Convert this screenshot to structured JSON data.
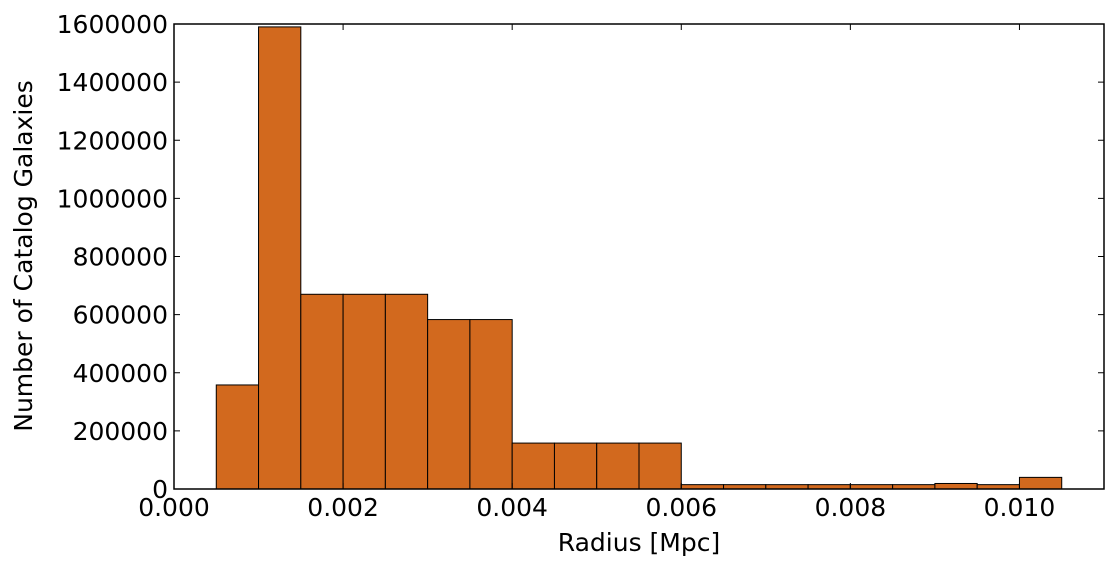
{
  "chart_data": {
    "type": "bar",
    "title": "",
    "xlabel": "Radius [Mpc]",
    "ylabel": "Number of Catalog Galaxies",
    "xlim": [
      0.0,
      0.011
    ],
    "ylim": [
      0,
      1600000
    ],
    "grid": false,
    "bar_color": "#d2691e",
    "edge_color": "#000000",
    "x_ticks": [
      {
        "value": 0.0,
        "label": "0.000"
      },
      {
        "value": 0.002,
        "label": "0.002"
      },
      {
        "value": 0.004,
        "label": "0.004"
      },
      {
        "value": 0.006,
        "label": "0.006"
      },
      {
        "value": 0.008,
        "label": "0.008"
      },
      {
        "value": 0.01,
        "label": "0.010"
      }
    ],
    "y_ticks": [
      {
        "value": 0,
        "label": "0"
      },
      {
        "value": 200000,
        "label": "200000"
      },
      {
        "value": 400000,
        "label": "400000"
      },
      {
        "value": 600000,
        "label": "600000"
      },
      {
        "value": 800000,
        "label": "800000"
      },
      {
        "value": 1000000,
        "label": "1000000"
      },
      {
        "value": 1200000,
        "label": "1200000"
      },
      {
        "value": 1400000,
        "label": "1400000"
      },
      {
        "value": 1600000,
        "label": "1600000"
      }
    ],
    "bins": [
      {
        "x0": 0.0005,
        "x1": 0.001,
        "value": 358000
      },
      {
        "x0": 0.001,
        "x1": 0.0015,
        "value": 1590000
      },
      {
        "x0": 0.0015,
        "x1": 0.002,
        "value": 670000
      },
      {
        "x0": 0.002,
        "x1": 0.0025,
        "value": 670000
      },
      {
        "x0": 0.0025,
        "x1": 0.003,
        "value": 670000
      },
      {
        "x0": 0.003,
        "x1": 0.0035,
        "value": 583000
      },
      {
        "x0": 0.0035,
        "x1": 0.004,
        "value": 583000
      },
      {
        "x0": 0.004,
        "x1": 0.0045,
        "value": 158000
      },
      {
        "x0": 0.0045,
        "x1": 0.005,
        "value": 158000
      },
      {
        "x0": 0.005,
        "x1": 0.0055,
        "value": 158000
      },
      {
        "x0": 0.0055,
        "x1": 0.006,
        "value": 158000
      },
      {
        "x0": 0.006,
        "x1": 0.0065,
        "value": 15000
      },
      {
        "x0": 0.0065,
        "x1": 0.007,
        "value": 15000
      },
      {
        "x0": 0.007,
        "x1": 0.0075,
        "value": 15000
      },
      {
        "x0": 0.0075,
        "x1": 0.008,
        "value": 15000
      },
      {
        "x0": 0.008,
        "x1": 0.0085,
        "value": 15000
      },
      {
        "x0": 0.0085,
        "x1": 0.009,
        "value": 15000
      },
      {
        "x0": 0.009,
        "x1": 0.0095,
        "value": 19000
      },
      {
        "x0": 0.0095,
        "x1": 0.01,
        "value": 15000
      },
      {
        "x0": 0.01,
        "x1": 0.0105,
        "value": 40000
      }
    ]
  }
}
